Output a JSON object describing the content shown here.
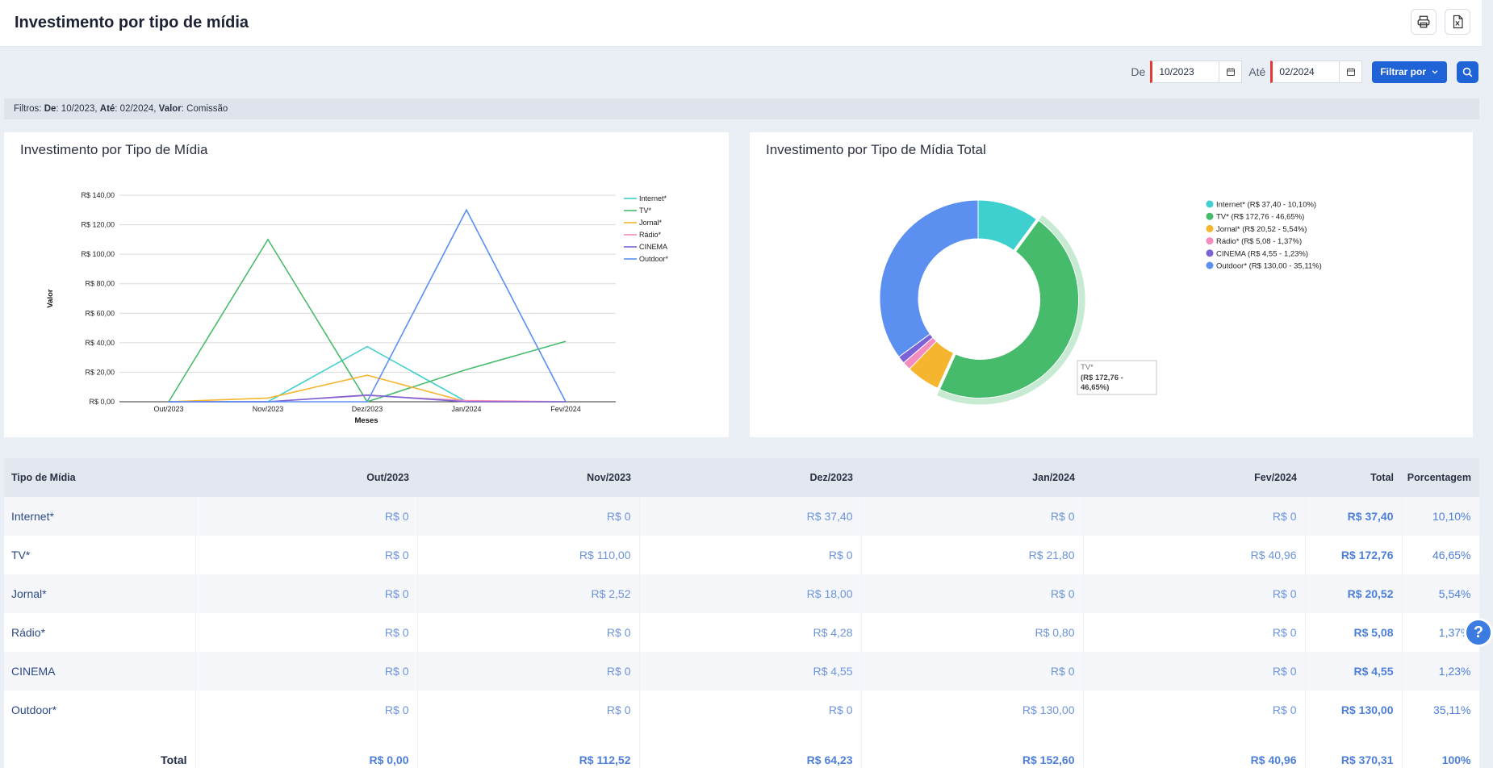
{
  "header": {
    "title": "Investimento por tipo de mídia"
  },
  "filterbar": {
    "from_label": "De",
    "from_value": "10/2023",
    "to_label": "Até",
    "to_value": "02/2024",
    "filter_button": "Filtrar por"
  },
  "summary": {
    "prefix": "Filtros:",
    "de_key": "De",
    "de_val": ": 10/2023, ",
    "ate_key": "Até",
    "ate_val": ": 02/2024, ",
    "valor_key": "Valor",
    "valor_val": ": Comissão"
  },
  "line_card": {
    "title": "Investimento por Tipo de Mídia"
  },
  "donut_card": {
    "title": "Investimento por Tipo de Mídia Total"
  },
  "chart_data": [
    {
      "type": "line",
      "title": "Investimento por Tipo de Mídia",
      "xlabel": "Meses",
      "ylabel": "Valor",
      "categories": [
        "Out/2023",
        "Nov/2023",
        "Dez/2023",
        "Jan/2024",
        "Fev/2024"
      ],
      "ylim": [
        0,
        140
      ],
      "yticks": [
        0,
        20,
        40,
        60,
        80,
        100,
        120,
        140
      ],
      "ytick_labels": [
        "R$ 0,00",
        "R$ 20,00",
        "R$ 40,00",
        "R$ 60,00",
        "R$ 80,00",
        "R$ 100,00",
        "R$ 120,00",
        "R$ 140,00"
      ],
      "grid": true,
      "legend": "right",
      "series": [
        {
          "name": "Internet*",
          "color": "#3ecfcf",
          "values": [
            0,
            0,
            37.4,
            0,
            0
          ]
        },
        {
          "name": "TV*",
          "color": "#47bb6c",
          "values": [
            0,
            110.0,
            0,
            21.8,
            40.96
          ]
        },
        {
          "name": "Jornal*",
          "color": "#f5b52e",
          "values": [
            0,
            2.52,
            18.0,
            0,
            0
          ]
        },
        {
          "name": "Rádio*",
          "color": "#f48cc0",
          "values": [
            0,
            0,
            4.28,
            0.8,
            0
          ]
        },
        {
          "name": "CINEMA",
          "color": "#7b62d6",
          "values": [
            0,
            0,
            4.55,
            0,
            0
          ]
        },
        {
          "name": "Outdoor*",
          "color": "#5b8ff0",
          "values": [
            0,
            0,
            0,
            130.0,
            0
          ]
        }
      ]
    },
    {
      "type": "pie",
      "title": "Investimento por Tipo de Mídia Total",
      "donut": true,
      "legend": "right",
      "labels": [
        "Internet*",
        "TV*",
        "Jornal*",
        "Rádio*",
        "CINEMA",
        "Outdoor*"
      ],
      "values": [
        37.4,
        172.76,
        20.52,
        5.08,
        4.55,
        130.0
      ],
      "colors": [
        "#3ecfcf",
        "#47bb6c",
        "#f5b52e",
        "#f48cc0",
        "#7b62d6",
        "#5b8ff0"
      ],
      "legend_labels": [
        "Internet* (R$ 37,40 - 10,10%)",
        "TV* (R$ 172,76 - 46,65%)",
        "Jornal* (R$ 20,52 - 5,54%)",
        "Rádio* (R$ 5,08 - 1,37%)",
        "CINEMA (R$ 4,55 - 1,23%)",
        "Outdoor* (R$ 130,00 - 35,11%)"
      ],
      "highlighted": 1,
      "tooltip": {
        "name": "TV*",
        "line1": "(R$ 172,76 -",
        "line2": "46,65%)"
      }
    }
  ],
  "table": {
    "headers": [
      "Tipo de Mídia",
      "Out/2023",
      "Nov/2023",
      "Dez/2023",
      "Jan/2024",
      "Fev/2024",
      "Total",
      "Porcentagem"
    ],
    "rows": [
      [
        "Internet*",
        "R$ 0",
        "R$ 0",
        "R$ 37,40",
        "R$ 0",
        "R$ 0",
        "R$ 37,40",
        "10,10%"
      ],
      [
        "TV*",
        "R$ 0",
        "R$ 110,00",
        "R$ 0",
        "R$ 21,80",
        "R$ 40,96",
        "R$ 172,76",
        "46,65%"
      ],
      [
        "Jornal*",
        "R$ 0",
        "R$ 2,52",
        "R$ 18,00",
        "R$ 0",
        "R$ 0",
        "R$ 20,52",
        "5,54%"
      ],
      [
        "Rádio*",
        "R$ 0",
        "R$ 0",
        "R$ 4,28",
        "R$ 0,80",
        "R$ 0",
        "R$ 5,08",
        "1,37%"
      ],
      [
        "CINEMA",
        "R$ 0",
        "R$ 0",
        "R$ 4,55",
        "R$ 0",
        "R$ 0",
        "R$ 4,55",
        "1,23%"
      ],
      [
        "Outdoor*",
        "R$ 0",
        "R$ 0",
        "R$ 0",
        "R$ 130,00",
        "R$ 0",
        "R$ 130,00",
        "35,11%"
      ]
    ],
    "total": [
      "Total",
      "R$ 0,00",
      "R$ 112,52",
      "R$ 64,23",
      "R$ 152,60",
      "R$ 40,96",
      "R$ 370,31",
      "100%"
    ]
  },
  "help": {
    "label": "?"
  }
}
